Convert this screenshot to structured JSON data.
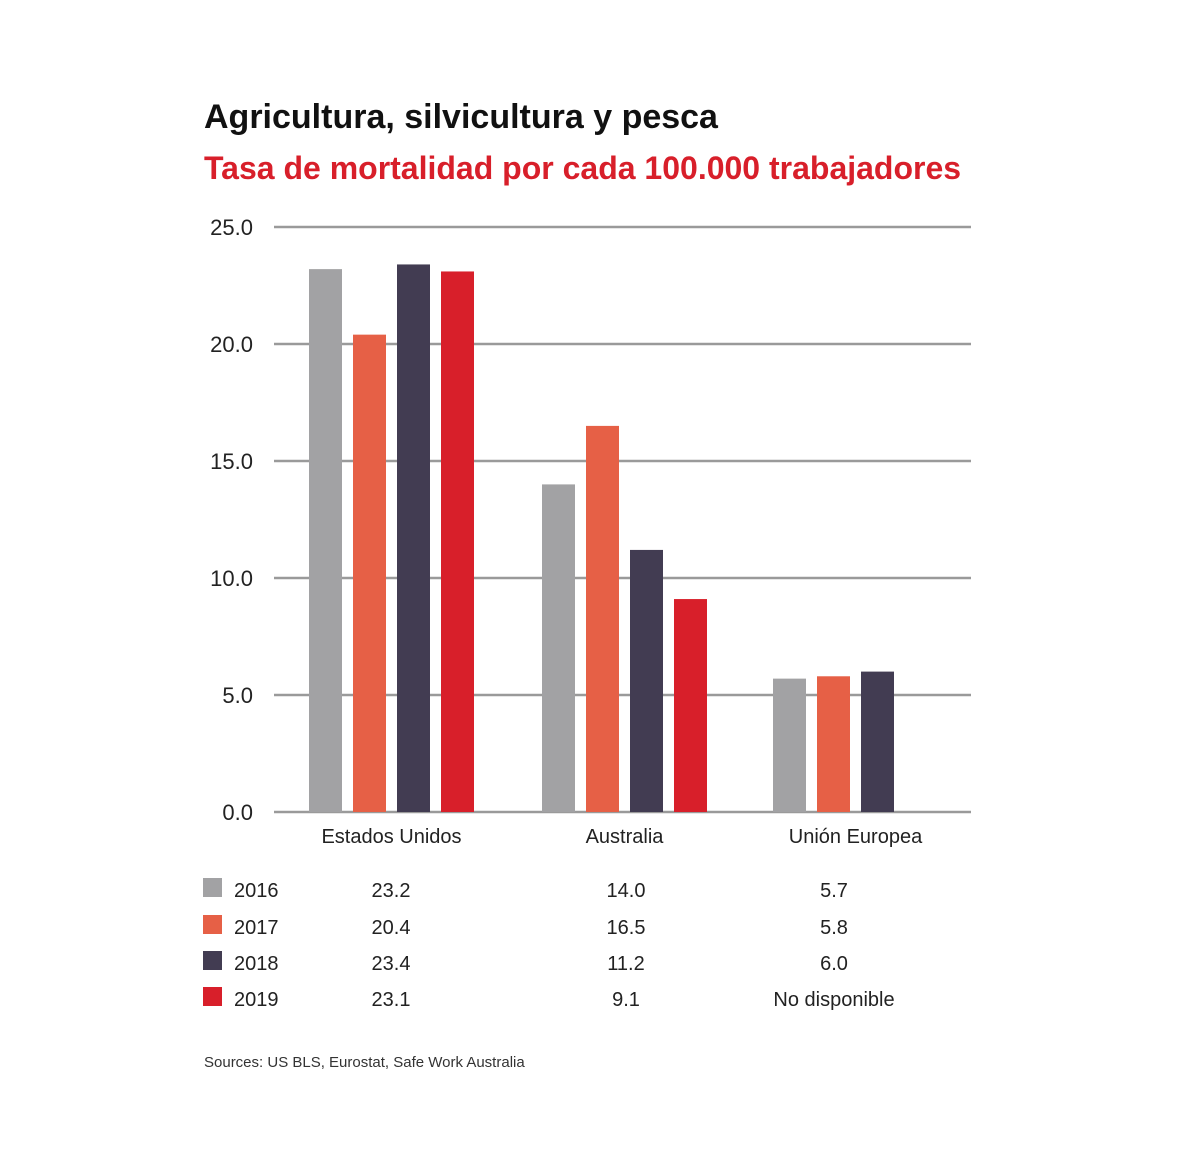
{
  "chart_data": {
    "type": "bar",
    "title": "Agricultura, silvicultura y pesca",
    "subtitle": "Tasa de mortalidad por cada 100.000 trabajadores",
    "categories": [
      "Estados Unidos",
      "Australia",
      "Unión Europea"
    ],
    "series": [
      {
        "name": "2016",
        "color": "#a2a2a4",
        "values": [
          23.2,
          14.0,
          5.7
        ],
        "labels": [
          "23.2",
          "14.0",
          "5.7"
        ]
      },
      {
        "name": "2017",
        "color": "#e66046",
        "values": [
          20.4,
          16.5,
          5.8
        ],
        "labels": [
          "20.4",
          "16.5",
          "5.8"
        ]
      },
      {
        "name": "2018",
        "color": "#423c52",
        "values": [
          23.4,
          11.2,
          6.0
        ],
        "labels": [
          "23.4",
          "11.2",
          "6.0"
        ]
      },
      {
        "name": "2019",
        "color": "#d81f2a",
        "values": [
          23.1,
          9.1,
          null
        ],
        "labels": [
          "23.1",
          "9.1",
          "No disponible"
        ]
      }
    ],
    "yticks": [
      "0.0",
      "5.0",
      "10.0",
      "15.0",
      "20.0",
      "25.0"
    ],
    "ylim": [
      0,
      25
    ],
    "grid": true,
    "legend": "table below chart",
    "source": "Sources: US BLS, Eurostat, Safe Work Australia"
  }
}
